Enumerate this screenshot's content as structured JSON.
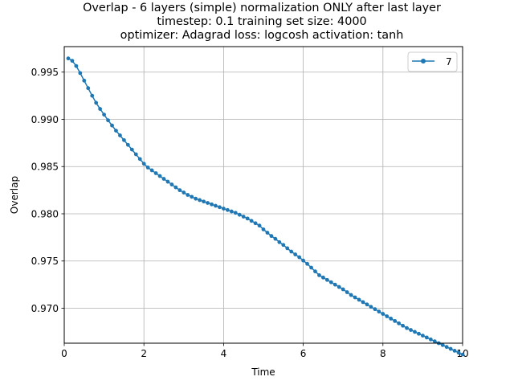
{
  "chart_data": {
    "type": "line",
    "title_lines": [
      "Overlap - 6 layers (simple) normalization ONLY after last layer",
      "timestep: 0.1 training set size: 4000",
      "optimizer: Adagrad loss: logcosh activation: tanh"
    ],
    "xlabel": "Time",
    "ylabel": "Overlap",
    "xlim": [
      0,
      10
    ],
    "ylim": [
      0.9663,
      0.9977
    ],
    "xticks": [
      0,
      2,
      4,
      6,
      8,
      10
    ],
    "xtick_labels": [
      "0",
      "2",
      "4",
      "6",
      "8",
      "10"
    ],
    "yticks": [
      0.97,
      0.975,
      0.98,
      0.985,
      0.99,
      0.995
    ],
    "ytick_labels": [
      "0.970",
      "0.975",
      "0.980",
      "0.985",
      "0.990",
      "0.995"
    ],
    "grid": true,
    "legend_position": "upper right",
    "series": [
      {
        "name": "7",
        "color": "#1f77b4",
        "marker": "circle",
        "x": [
          0.1,
          0.2,
          0.3,
          0.4,
          0.5,
          0.6,
          0.7,
          0.8,
          0.9,
          1.0,
          1.1,
          1.2,
          1.3,
          1.4,
          1.5,
          1.6,
          1.7,
          1.8,
          1.9,
          2.0,
          2.1,
          2.2,
          2.3,
          2.4,
          2.5,
          2.6,
          2.7,
          2.8,
          2.9,
          3.0,
          3.1,
          3.2,
          3.3,
          3.4,
          3.5,
          3.6,
          3.7,
          3.8,
          3.9,
          4.0,
          4.1,
          4.2,
          4.3,
          4.4,
          4.5,
          4.6,
          4.7,
          4.8,
          4.9,
          5.0,
          5.1,
          5.2,
          5.3,
          5.4,
          5.5,
          5.6,
          5.7,
          5.8,
          5.9,
          6.0,
          6.1,
          6.2,
          6.3,
          6.4,
          6.5,
          6.6,
          6.7,
          6.8,
          6.9,
          7.0,
          7.1,
          7.2,
          7.3,
          7.4,
          7.5,
          7.6,
          7.7,
          7.8,
          7.9,
          8.0,
          8.1,
          8.2,
          8.3,
          8.4,
          8.5,
          8.6,
          8.7,
          8.8,
          8.9,
          9.0,
          9.1,
          9.2,
          9.3,
          9.4,
          9.5,
          9.6,
          9.7,
          9.8,
          9.9,
          10.0
        ],
        "y": [
          0.99645,
          0.9962,
          0.99565,
          0.9949,
          0.9941,
          0.9933,
          0.9925,
          0.99175,
          0.9911,
          0.9905,
          0.9899,
          0.98935,
          0.9888,
          0.9883,
          0.9878,
          0.9873,
          0.9868,
          0.9863,
          0.9858,
          0.9853,
          0.9849,
          0.9846,
          0.9843,
          0.984,
          0.9837,
          0.9834,
          0.9831,
          0.9828,
          0.9825,
          0.98225,
          0.982,
          0.9818,
          0.9816,
          0.98145,
          0.9813,
          0.98115,
          0.981,
          0.98085,
          0.9807,
          0.98055,
          0.9804,
          0.98025,
          0.9801,
          0.9799,
          0.9797,
          0.9795,
          0.97925,
          0.979,
          0.97875,
          0.97835,
          0.978,
          0.97765,
          0.97735,
          0.977,
          0.9767,
          0.97635,
          0.976,
          0.9757,
          0.9754,
          0.97505,
          0.9747,
          0.9743,
          0.9739,
          0.9735,
          0.97325,
          0.973,
          0.97275,
          0.9725,
          0.97225,
          0.972,
          0.9717,
          0.9714,
          0.97115,
          0.9709,
          0.97065,
          0.9704,
          0.97015,
          0.9699,
          0.96965,
          0.9694,
          0.96915,
          0.9689,
          0.96865,
          0.9684,
          0.96815,
          0.9679,
          0.9677,
          0.9675,
          0.9673,
          0.9671,
          0.9669,
          0.9667,
          0.9665,
          0.9663,
          0.9661,
          0.9659,
          0.9657,
          0.9655,
          0.9653,
          0.9651
        ]
      }
    ]
  }
}
